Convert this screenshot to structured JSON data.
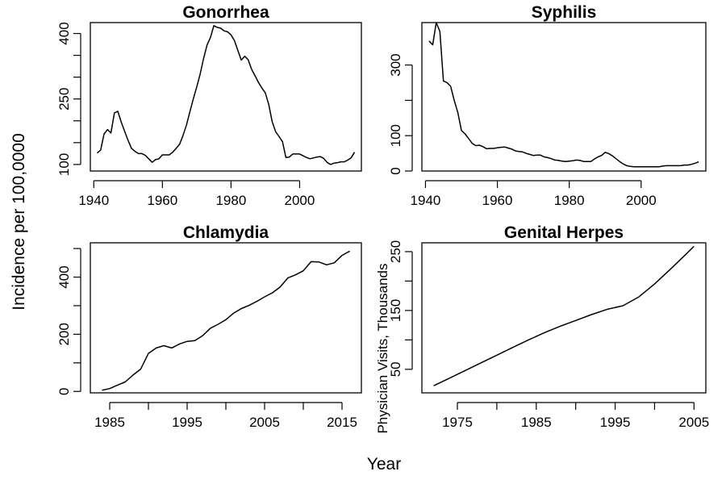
{
  "figure": {
    "ylabel": "Incidence per 100,0000",
    "xlabel": "Year"
  },
  "chart_data": [
    {
      "type": "line",
      "title": "Gonorrhea",
      "xlabel": "",
      "ylabel": "",
      "xlim": [
        1939,
        2018
      ],
      "ylim": [
        85,
        425
      ],
      "xticks": [
        1940,
        1960,
        1980,
        2000
      ],
      "yticks": [
        100,
        250,
        400
      ],
      "ytick_minor": [
        150,
        200,
        300,
        350
      ],
      "x": [
        1941,
        1942,
        1943,
        1944,
        1945,
        1946,
        1947,
        1948,
        1949,
        1950,
        1951,
        1952,
        1953,
        1954,
        1955,
        1956,
        1957,
        1958,
        1959,
        1960,
        1961,
        1962,
        1963,
        1964,
        1965,
        1966,
        1967,
        1968,
        1969,
        1970,
        1971,
        1972,
        1973,
        1974,
        1975,
        1976,
        1977,
        1978,
        1979,
        1980,
        1981,
        1982,
        1983,
        1984,
        1985,
        1986,
        1987,
        1988,
        1989,
        1990,
        1991,
        1992,
        1993,
        1994,
        1995,
        1996,
        1997,
        1998,
        1999,
        2000,
        2001,
        2002,
        2003,
        2004,
        2005,
        2006,
        2007,
        2008,
        2009,
        2010,
        2011,
        2012,
        2013,
        2014,
        2015,
        2016
      ],
      "values": [
        126,
        133,
        170,
        180,
        172,
        218,
        222,
        197,
        176,
        155,
        137,
        130,
        125,
        125,
        121,
        113,
        105,
        111,
        113,
        122,
        122,
        122,
        128,
        137,
        146,
        166,
        190,
        220,
        250,
        277,
        307,
        343,
        373,
        391,
        418,
        414,
        412,
        406,
        404,
        397,
        384,
        361,
        339,
        348,
        340,
        318,
        303,
        288,
        275,
        264,
        237,
        198,
        175,
        164,
        152,
        116,
        117,
        124,
        124,
        124,
        120,
        116,
        113,
        115,
        117,
        118,
        114,
        105,
        100,
        103,
        104,
        106,
        106,
        110,
        115,
        128
      ]
    },
    {
      "type": "line",
      "title": "Syphilis",
      "xlabel": "",
      "ylabel": "",
      "xlim": [
        1939,
        2018
      ],
      "ylim": [
        0,
        420
      ],
      "xticks": [
        1940,
        1960,
        1980,
        2000
      ],
      "yticks": [
        0,
        100,
        300
      ],
      "ytick_minor": [
        200
      ],
      "x": [
        1941,
        1942,
        1943,
        1944,
        1945,
        1946,
        1947,
        1948,
        1949,
        1950,
        1951,
        1952,
        1953,
        1954,
        1955,
        1956,
        1957,
        1958,
        1959,
        1960,
        1961,
        1962,
        1963,
        1964,
        1965,
        1966,
        1967,
        1968,
        1969,
        1970,
        1971,
        1972,
        1973,
        1974,
        1975,
        1976,
        1977,
        1978,
        1979,
        1980,
        1981,
        1982,
        1983,
        1984,
        1985,
        1986,
        1987,
        1988,
        1989,
        1990,
        1991,
        1992,
        1993,
        1994,
        1995,
        1996,
        1997,
        1998,
        1999,
        2000,
        2001,
        2002,
        2003,
        2004,
        2005,
        2006,
        2007,
        2008,
        2009,
        2010,
        2011,
        2012,
        2013,
        2014,
        2015,
        2016
      ],
      "values": [
        368,
        357,
        420,
        395,
        255,
        250,
        240,
        200,
        165,
        115,
        105,
        92,
        78,
        72,
        73,
        69,
        63,
        64,
        64,
        66,
        67,
        68,
        65,
        62,
        57,
        55,
        54,
        50,
        47,
        44,
        45,
        45,
        40,
        38,
        35,
        31,
        30,
        28,
        27,
        28,
        29,
        31,
        30,
        27,
        27,
        27,
        34,
        40,
        44,
        53,
        49,
        43,
        35,
        27,
        20,
        15,
        13,
        12,
        12,
        12,
        12,
        12,
        12,
        12,
        12,
        14,
        15,
        15,
        15,
        15,
        15,
        17,
        17,
        19,
        22,
        26
      ]
    },
    {
      "type": "line",
      "title": "Chlamydia",
      "xlabel": "",
      "ylabel": "",
      "xlim": [
        1982.5,
        2017.5
      ],
      "ylim": [
        -5,
        520
      ],
      "xticks": [
        1985,
        1995,
        2005,
        2015
      ],
      "xtick_minor": [
        1990,
        2000,
        2010
      ],
      "yticks": [
        0,
        200,
        400
      ],
      "ytick_minor": [
        100,
        300,
        500
      ],
      "x": [
        1984,
        1985,
        1986,
        1987,
        1988,
        1989,
        1990,
        1991,
        1992,
        1993,
        1994,
        1995,
        1996,
        1997,
        1998,
        1999,
        2000,
        2001,
        2002,
        2003,
        2004,
        2005,
        2006,
        2007,
        2008,
        2009,
        2010,
        2011,
        2012,
        2013,
        2014,
        2015,
        2016
      ],
      "values": [
        4,
        10,
        22,
        33,
        57,
        78,
        133,
        152,
        160,
        152,
        166,
        175,
        178,
        195,
        221,
        235,
        251,
        274,
        290,
        301,
        315,
        331,
        345,
        365,
        397,
        408,
        422,
        454,
        453,
        443,
        450,
        476,
        491
      ]
    },
    {
      "type": "line",
      "title": "Genital Herpes",
      "xlabel": "",
      "ylabel": "Physician Visits, Thousands",
      "xlim": [
        1970.5,
        2006.5
      ],
      "ylim": [
        10,
        265
      ],
      "xticks": [
        1975,
        1985,
        1995,
        2005
      ],
      "xtick_minor": [
        1980,
        1990,
        2000
      ],
      "yticks": [
        50,
        150,
        250
      ],
      "ytick_minor": [
        100,
        200
      ],
      "x": [
        1972,
        1974,
        1976,
        1978,
        1980,
        1982,
        1984,
        1986,
        1988,
        1990,
        1992,
        1994,
        1996,
        1998,
        2000,
        2002,
        2004,
        2005
      ],
      "values": [
        22,
        35,
        48,
        61,
        74,
        87,
        100,
        112,
        123,
        133,
        143,
        152,
        158,
        173,
        195,
        220,
        246,
        259
      ]
    }
  ]
}
